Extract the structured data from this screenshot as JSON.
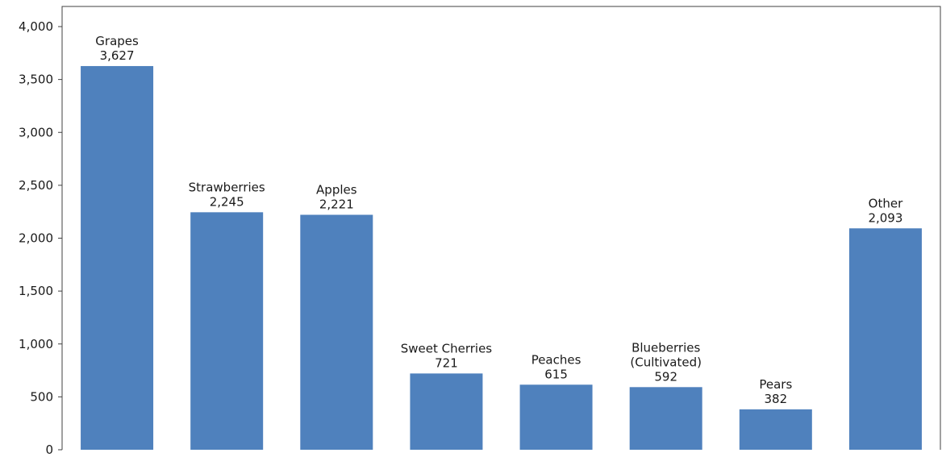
{
  "chart_data": {
    "type": "bar",
    "title": "",
    "xlabel": "",
    "ylabel": "",
    "categories": [
      [
        "Grapes"
      ],
      [
        "Strawberries"
      ],
      [
        "Apples"
      ],
      [
        "Sweet Cherries"
      ],
      [
        "Peaches"
      ],
      [
        "Blueberries",
        "(Cultivated)"
      ],
      [
        "Pears"
      ],
      [
        "Other"
      ]
    ],
    "values": [
      3627,
      2245,
      2221,
      721,
      615,
      592,
      382,
      2093
    ],
    "value_labels": [
      "3,627",
      "2,245",
      "2,221",
      "721",
      "615",
      "592",
      "382",
      "2,093"
    ],
    "ylim": [
      0,
      4000
    ],
    "y_ticks": [
      0,
      500,
      1000,
      1500,
      2000,
      2500,
      3000,
      3500,
      4000
    ],
    "y_tick_labels": [
      "0",
      "500",
      "1,000",
      "1,500",
      "2,000",
      "2,500",
      "3,000",
      "3,500",
      "4,000"
    ],
    "grid": false,
    "legend": "none",
    "colors": {
      "bar": "#4f81bd",
      "axis": "#404040",
      "text": "#1a1a1a"
    }
  }
}
